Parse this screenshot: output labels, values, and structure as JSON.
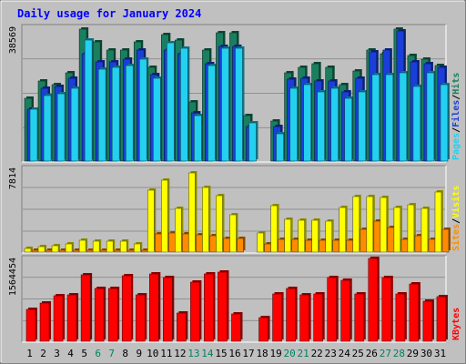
{
  "chart_data": {
    "type": "bar",
    "title": "Daily usage for January 2024",
    "days": [
      "1",
      "2",
      "3",
      "4",
      "5",
      "6",
      "7",
      "8",
      "9",
      "10",
      "11",
      "12",
      "13",
      "14",
      "15",
      "16",
      "17",
      "18",
      "19",
      "20",
      "21",
      "22",
      "23",
      "24",
      "25",
      "26",
      "27",
      "28",
      "29",
      "30",
      "31"
    ],
    "weekend_days": [
      "6",
      "7",
      "13",
      "14",
      "20",
      "21",
      "27",
      "28"
    ],
    "panels": [
      {
        "id": "hits_files_pages",
        "ymax_label": "38569",
        "ymax": 38569,
        "legend": [
          "Pages",
          "/",
          "Files",
          "/",
          "Hits"
        ],
        "series": [
          {
            "name": "Hits",
            "color": "#1a7f5f",
            "values": [
              18000,
              23000,
              22000,
              25500,
              38000,
              34500,
              32000,
              32000,
              34500,
              27000,
              36500,
              35000,
              17000,
              32000,
              37000,
              37000,
              13000,
              0,
              11500,
              25500,
              27000,
              28000,
              27000,
              22000,
              26000,
              32000,
              31000,
              38000,
              30500,
              29500,
              27500
            ]
          },
          {
            "name": "Files",
            "color": "#1a3fd8",
            "values": [
              15000,
              21000,
              21500,
              24000,
              31000,
              28500,
              28500,
              29500,
              32000,
              25000,
              32000,
              31000,
              14000,
              28000,
              33000,
              33000,
              10000,
              0,
              10000,
              23500,
              24000,
              23000,
              23000,
              20000,
              24000,
              31500,
              32000,
              37500,
              28500,
              28000,
              27000
            ]
          },
          {
            "name": "Pages",
            "color": "#23d0f0",
            "values": [
              15000,
              19000,
              19500,
              21000,
              35000,
              26500,
              27000,
              27500,
              29500,
              24000,
              34000,
              32500,
              13000,
              27500,
              32500,
              32500,
              11000,
              0,
              8000,
              21000,
              22000,
              20000,
              21000,
              18000,
              20000,
              25000,
              25000,
              25500,
              21500,
              25500,
              22000
            ]
          }
        ]
      },
      {
        "id": "visits_sites",
        "ymax_label": "7814",
        "ymax": 7814,
        "legend": [
          "Sites",
          "/",
          "Visits"
        ],
        "series": [
          {
            "name": "Visits",
            "color": "#ffff00",
            "values": [
              300,
              500,
              600,
              800,
              1100,
              1000,
              1000,
              1000,
              800,
              5800,
              6700,
              4100,
              7400,
              6000,
              5300,
              3500,
              0,
              1800,
              4300,
              3100,
              3000,
              3000,
              2900,
              4200,
              5200,
              5200,
              5100,
              4200,
              4400,
              4100,
              5600
            ]
          },
          {
            "name": "Sites",
            "color": "#ff8c00",
            "values": [
              150,
              150,
              200,
              200,
              200,
              200,
              200,
              200,
              200,
              1700,
              1800,
              1700,
              1600,
              1500,
              1300,
              1300,
              0,
              800,
              1200,
              1200,
              1100,
              1100,
              1100,
              1100,
              2100,
              2900,
              2300,
              1200,
              1500,
              1200,
              2100
            ]
          }
        ]
      },
      {
        "id": "kbytes",
        "ymax_label": "1564454",
        "ymax": 1564454,
        "legend": [
          "KBytes"
        ],
        "series": [
          {
            "name": "KBytes",
            "color": "#ff0000",
            "values": [
              600000,
              720000,
              860000,
              880000,
              1250000,
              990000,
              1000000,
              1240000,
              880000,
              1270000,
              1200000,
              540000,
              1120000,
              1280000,
              1300000,
              520000,
              0,
              450000,
              900000,
              1000000,
              880000,
              900000,
              1200000,
              1150000,
              900000,
              1560000,
              1200000,
              900000,
              1080000,
              760000,
              850000
            ]
          }
        ]
      }
    ]
  }
}
